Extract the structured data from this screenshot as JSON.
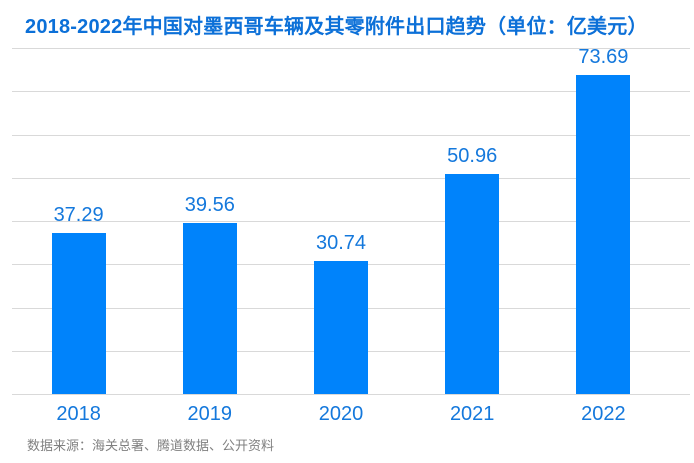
{
  "header": {
    "title": "2018-2022年中国对墨西哥车辆及其零附件出口趋势（单位：亿美元）"
  },
  "footer": {
    "source_note": "数据来源：海关总署、腾道数据、公开资料"
  },
  "chart_data": {
    "type": "bar",
    "title": "2018-2022年中国对墨西哥车辆及其零附件出口趋势（单位：亿美元）",
    "categories": [
      "2018",
      "2019",
      "2020",
      "2021",
      "2022"
    ],
    "values": [
      37.29,
      39.56,
      30.74,
      50.96,
      73.69
    ],
    "unit": "亿美元",
    "xlabel": "",
    "ylabel": "",
    "ylim": [
      0,
      80
    ],
    "grid_interval": 10,
    "grid": "horizontal-lines-on",
    "y_axis_tick_labels": "hidden",
    "legend": "none",
    "data_labels": "above-bars",
    "colors": {
      "bar": "#0083FB",
      "title": "#0C70D8",
      "value_label": "#1478DC",
      "axis_label": "#1478DC",
      "gridline": "#D9D9D9",
      "source_text": "#808080",
      "background": "#FFFFFF"
    }
  }
}
